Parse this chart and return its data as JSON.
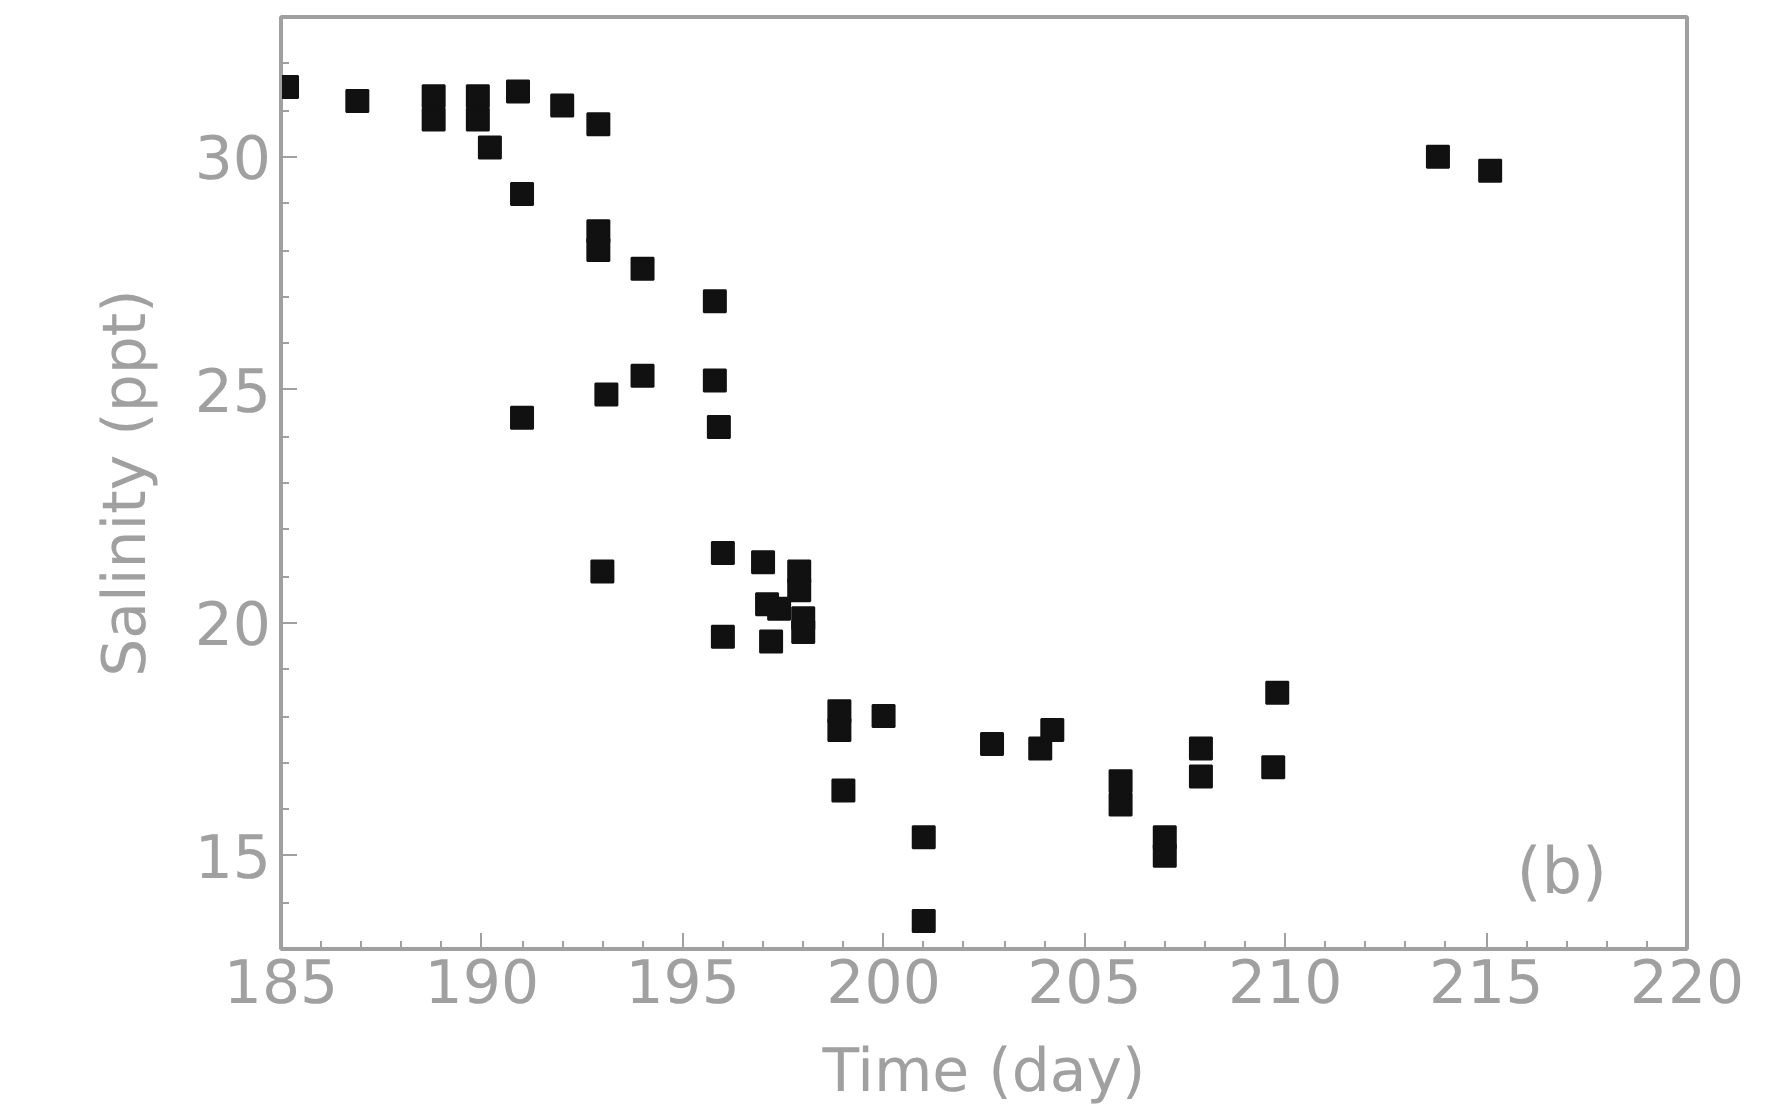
{
  "chart_data": {
    "type": "scatter",
    "xlabel": "Time (day)",
    "ylabel": "Salinity (ppt)",
    "xlim": [
      185,
      220
    ],
    "ylim": [
      13,
      33
    ],
    "xticks": [
      185,
      190,
      195,
      200,
      205,
      210,
      215,
      220
    ],
    "yticks": [
      15,
      20,
      25,
      30
    ],
    "grid": false,
    "marker": "square",
    "annotations": [
      "(b)"
    ],
    "series": [
      {
        "color": "#111111",
        "x": [
          185.15,
          186.9,
          188.8,
          188.8,
          189.9,
          189.9,
          190.2,
          190.9,
          192.0,
          192.9,
          191.0,
          192.9,
          192.9,
          194.0,
          195.8,
          195.8,
          195.9,
          194.0,
          193.1,
          191.0,
          193.0,
          196.0,
          196.0,
          197.0,
          197.9,
          197.9,
          197.1,
          197.4,
          198.0,
          198.0,
          197.2,
          198.9,
          198.9,
          200.0,
          199.0,
          201.0,
          201.0,
          202.7,
          203.9,
          204.2,
          205.9,
          205.9,
          207.0,
          207.0,
          207.9,
          207.9,
          209.8,
          209.7,
          213.8,
          215.1
        ],
        "values": [
          31.5,
          31.2,
          31.3,
          30.8,
          31.3,
          30.8,
          30.2,
          31.4,
          31.1,
          30.7,
          29.2,
          28.4,
          28.0,
          27.6,
          26.9,
          25.2,
          24.2,
          25.3,
          24.9,
          24.4,
          21.1,
          21.5,
          19.7,
          21.3,
          21.1,
          20.7,
          20.4,
          20.3,
          20.1,
          19.8,
          19.6,
          18.1,
          17.7,
          18.0,
          16.4,
          15.4,
          13.6,
          17.4,
          17.3,
          17.7,
          16.6,
          16.1,
          15.4,
          15.0,
          17.3,
          16.7,
          18.5,
          16.9,
          30.0,
          29.7
        ]
      }
    ]
  }
}
